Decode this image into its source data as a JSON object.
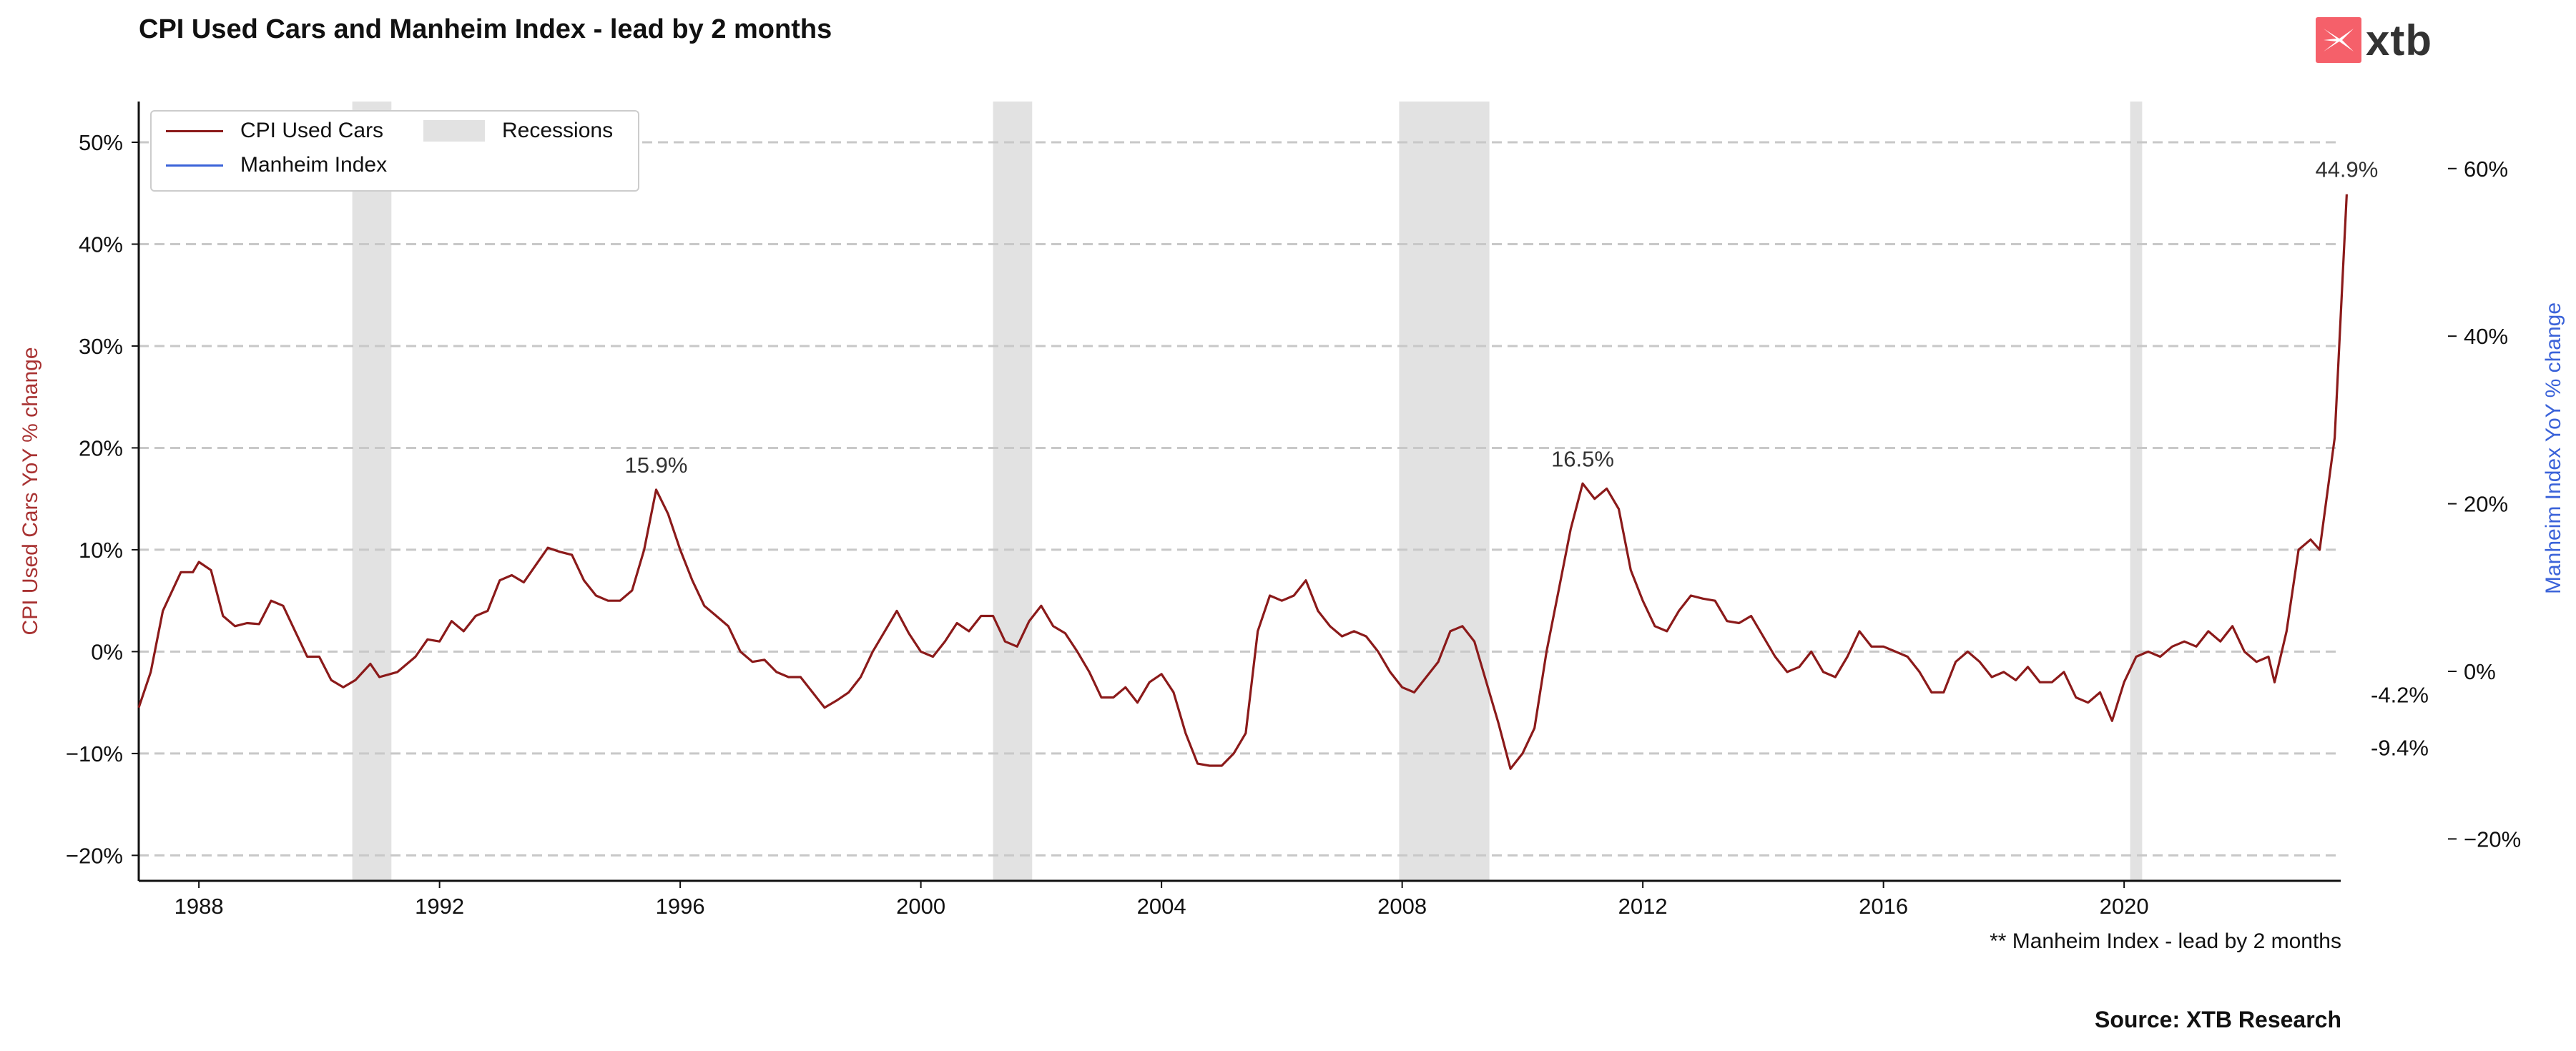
{
  "title": "CPI Used Cars and Manheim Index - lead by 2 months",
  "logo_text": "xtb",
  "note": "** Manheim Index - lead by 2 months",
  "source": "Source: XTB Research",
  "colors": {
    "cpi": "#8b1a1a",
    "manheim": "#3b63d9",
    "recession": "#e2e2e2",
    "grid": "#c8c8c8",
    "logo": "#f5606a"
  },
  "chart_data": {
    "type": "line",
    "xlabel": "",
    "ylabel_left": "CPI Used Cars YoY % change",
    "ylabel_right": "Manheim Index YoY % change",
    "xlim": [
      1987.0,
      2023.6
    ],
    "ylim_left": [
      -22.5,
      54
    ],
    "ylim_right": [
      -25,
      68
    ],
    "x_ticks": [
      1988,
      1992,
      1996,
      2000,
      2004,
      2008,
      2012,
      2016,
      2020
    ],
    "y_ticks_left": [
      -20,
      -10,
      0,
      10,
      20,
      30,
      40,
      50
    ],
    "y_tick_labels_left": [
      "−20%",
      "−10%",
      "0%",
      "10%",
      "20%",
      "30%",
      "40%",
      "50%"
    ],
    "y_ticks_right": [
      -20,
      0,
      20,
      40,
      60
    ],
    "y_tick_labels_right": [
      "−20%",
      "0%",
      "20%",
      "40%",
      "60%"
    ],
    "grid": "horizontal dashed",
    "legend": {
      "placement": "top-left",
      "entries": [
        "CPI Used Cars",
        "Manheim Index",
        "Recessions"
      ]
    },
    "recessions": [
      [
        1990.55,
        1991.2
      ],
      [
        2001.2,
        2001.85
      ],
      [
        2007.95,
        2009.45
      ],
      [
        2020.1,
        2020.3
      ]
    ],
    "series": [
      {
        "name": "CPI Used Cars",
        "axis": "left",
        "points": [
          [
            1987.0,
            -5.5
          ],
          [
            1987.2,
            -2
          ],
          [
            1987.4,
            4
          ],
          [
            1987.7,
            7.8
          ],
          [
            1987.9,
            7.8
          ],
          [
            1988.0,
            8.8
          ],
          [
            1988.2,
            8
          ],
          [
            1988.4,
            3.5
          ],
          [
            1988.6,
            2.5
          ],
          [
            1988.8,
            2.8
          ],
          [
            1989.0,
            2.7
          ],
          [
            1989.2,
            5
          ],
          [
            1989.4,
            4.5
          ],
          [
            1989.6,
            2
          ],
          [
            1989.8,
            -0.5
          ],
          [
            1990.0,
            -0.5
          ],
          [
            1990.2,
            -2.8
          ],
          [
            1990.4,
            -3.5
          ],
          [
            1990.6,
            -2.8
          ],
          [
            1990.85,
            -1.2
          ],
          [
            1991.0,
            -2.5
          ],
          [
            1991.3,
            -2
          ],
          [
            1991.6,
            -0.5
          ],
          [
            1991.8,
            1.2
          ],
          [
            1992.0,
            1
          ],
          [
            1992.2,
            3
          ],
          [
            1992.4,
            2
          ],
          [
            1992.6,
            3.5
          ],
          [
            1992.8,
            4
          ],
          [
            1993.0,
            7
          ],
          [
            1993.2,
            7.5
          ],
          [
            1993.4,
            6.8
          ],
          [
            1993.6,
            8.5
          ],
          [
            1993.8,
            10.2
          ],
          [
            1994.0,
            9.8
          ],
          [
            1994.2,
            9.5
          ],
          [
            1994.4,
            7
          ],
          [
            1994.6,
            5.5
          ],
          [
            1994.8,
            5
          ],
          [
            1995.0,
            5
          ],
          [
            1995.2,
            6
          ],
          [
            1995.4,
            10
          ],
          [
            1995.6,
            15.9
          ],
          [
            1995.8,
            13.5
          ],
          [
            1996.0,
            10
          ],
          [
            1996.2,
            7
          ],
          [
            1996.4,
            4.5
          ],
          [
            1996.6,
            3.5
          ],
          [
            1996.8,
            2.5
          ],
          [
            1997.0,
            0
          ],
          [
            1997.2,
            -1
          ],
          [
            1997.4,
            -0.8
          ],
          [
            1997.6,
            -2
          ],
          [
            1997.8,
            -2.5
          ],
          [
            1998.0,
            -2.5
          ],
          [
            1998.2,
            -4
          ],
          [
            1998.4,
            -5.5
          ],
          [
            1998.6,
            -4.8
          ],
          [
            1998.8,
            -4
          ],
          [
            1999.0,
            -2.5
          ],
          [
            1999.2,
            0
          ],
          [
            1999.4,
            2
          ],
          [
            1999.6,
            4
          ],
          [
            1999.8,
            1.8
          ],
          [
            2000.0,
            0
          ],
          [
            2000.2,
            -0.5
          ],
          [
            2000.4,
            1
          ],
          [
            2000.6,
            2.8
          ],
          [
            2000.8,
            2
          ],
          [
            2001.0,
            3.5
          ],
          [
            2001.2,
            3.5
          ],
          [
            2001.4,
            1
          ],
          [
            2001.6,
            0.5
          ],
          [
            2001.8,
            3
          ],
          [
            2002.0,
            4.5
          ],
          [
            2002.2,
            2.5
          ],
          [
            2002.4,
            1.8
          ],
          [
            2002.6,
            0
          ],
          [
            2002.8,
            -2
          ],
          [
            2003.0,
            -4.5
          ],
          [
            2003.2,
            -4.5
          ],
          [
            2003.4,
            -3.5
          ],
          [
            2003.6,
            -5
          ],
          [
            2003.8,
            -3
          ],
          [
            2004.0,
            -2.2
          ],
          [
            2004.2,
            -4
          ],
          [
            2004.4,
            -8
          ],
          [
            2004.6,
            -11
          ],
          [
            2004.8,
            -11.2
          ],
          [
            2005.0,
            -11.2
          ],
          [
            2005.2,
            -10
          ],
          [
            2005.4,
            -8
          ],
          [
            2005.6,
            2
          ],
          [
            2005.8,
            5.5
          ],
          [
            2006.0,
            5
          ],
          [
            2006.2,
            5.5
          ],
          [
            2006.4,
            7
          ],
          [
            2006.6,
            4
          ],
          [
            2006.8,
            2.5
          ],
          [
            2007.0,
            1.5
          ],
          [
            2007.2,
            2
          ],
          [
            2007.4,
            1.5
          ],
          [
            2007.6,
            0
          ],
          [
            2007.8,
            -2
          ],
          [
            2008.0,
            -3.5
          ],
          [
            2008.2,
            -4
          ],
          [
            2008.4,
            -2.5
          ],
          [
            2008.6,
            -1
          ],
          [
            2008.8,
            2
          ],
          [
            2009.0,
            2.5
          ],
          [
            2009.2,
            1
          ],
          [
            2009.4,
            -3
          ],
          [
            2009.6,
            -7
          ],
          [
            2009.8,
            -11.5
          ],
          [
            2010.0,
            -10
          ],
          [
            2010.2,
            -7.5
          ],
          [
            2010.4,
            0
          ],
          [
            2010.6,
            6
          ],
          [
            2010.8,
            12
          ],
          [
            2011.0,
            16.5
          ],
          [
            2011.2,
            15
          ],
          [
            2011.4,
            16
          ],
          [
            2011.6,
            14
          ],
          [
            2011.8,
            8
          ],
          [
            2012.0,
            5
          ],
          [
            2012.2,
            2.5
          ],
          [
            2012.4,
            2
          ],
          [
            2012.6,
            4
          ],
          [
            2012.8,
            5.5
          ],
          [
            2013.0,
            5.2
          ],
          [
            2013.2,
            5
          ],
          [
            2013.4,
            3
          ],
          [
            2013.6,
            2.8
          ],
          [
            2013.8,
            3.5
          ],
          [
            2014.0,
            1.5
          ],
          [
            2014.2,
            -0.5
          ],
          [
            2014.4,
            -2
          ],
          [
            2014.6,
            -1.5
          ],
          [
            2014.8,
            0
          ],
          [
            2015.0,
            -2
          ],
          [
            2015.2,
            -2.5
          ],
          [
            2015.4,
            -0.5
          ],
          [
            2015.6,
            2
          ],
          [
            2015.8,
            0.5
          ],
          [
            2016.0,
            0.5
          ],
          [
            2016.2,
            0
          ],
          [
            2016.4,
            -0.5
          ],
          [
            2016.6,
            -2
          ],
          [
            2016.8,
            -4
          ],
          [
            2017.0,
            -4
          ],
          [
            2017.2,
            -1
          ],
          [
            2017.4,
            0
          ],
          [
            2017.6,
            -1
          ],
          [
            2017.8,
            -2.5
          ],
          [
            2018.0,
            -2
          ],
          [
            2018.2,
            -2.8
          ],
          [
            2018.4,
            -1.5
          ],
          [
            2018.6,
            -3
          ],
          [
            2018.8,
            -3
          ],
          [
            2019.0,
            -2
          ],
          [
            2019.2,
            -4.5
          ],
          [
            2019.4,
            -5
          ],
          [
            2019.6,
            -4
          ],
          [
            2019.8,
            -6.8
          ],
          [
            2020.0,
            -3
          ],
          [
            2020.2,
            -0.5
          ],
          [
            2020.4,
            0
          ],
          [
            2020.6,
            -0.5
          ],
          [
            2020.8,
            0.5
          ],
          [
            2021.0,
            1
          ],
          [
            2021.2,
            0.5
          ],
          [
            2021.4,
            2
          ],
          [
            2021.6,
            1
          ],
          [
            2021.8,
            2.5
          ],
          [
            2022.0,
            0
          ],
          [
            2022.2,
            -1
          ],
          [
            2022.4,
            -0.5
          ],
          [
            2022.5,
            -3
          ],
          [
            2022.7,
            2
          ],
          [
            2022.9,
            10
          ],
          [
            2023.1,
            11
          ],
          [
            2023.25,
            10
          ],
          [
            2023.5,
            21
          ],
          [
            2023.7,
            44.9
          ]
        ]
      },
      {
        "name": "Manheim Index",
        "axis": "right",
        "points": []
      }
    ],
    "annotations": [
      "15.9%",
      "16.5%",
      "44.9%",
      "-4.2%",
      "-9.4%"
    ]
  },
  "note_points": {
    "cpi_label": "-4.2%",
    "manheim_label": "-9.4%"
  }
}
